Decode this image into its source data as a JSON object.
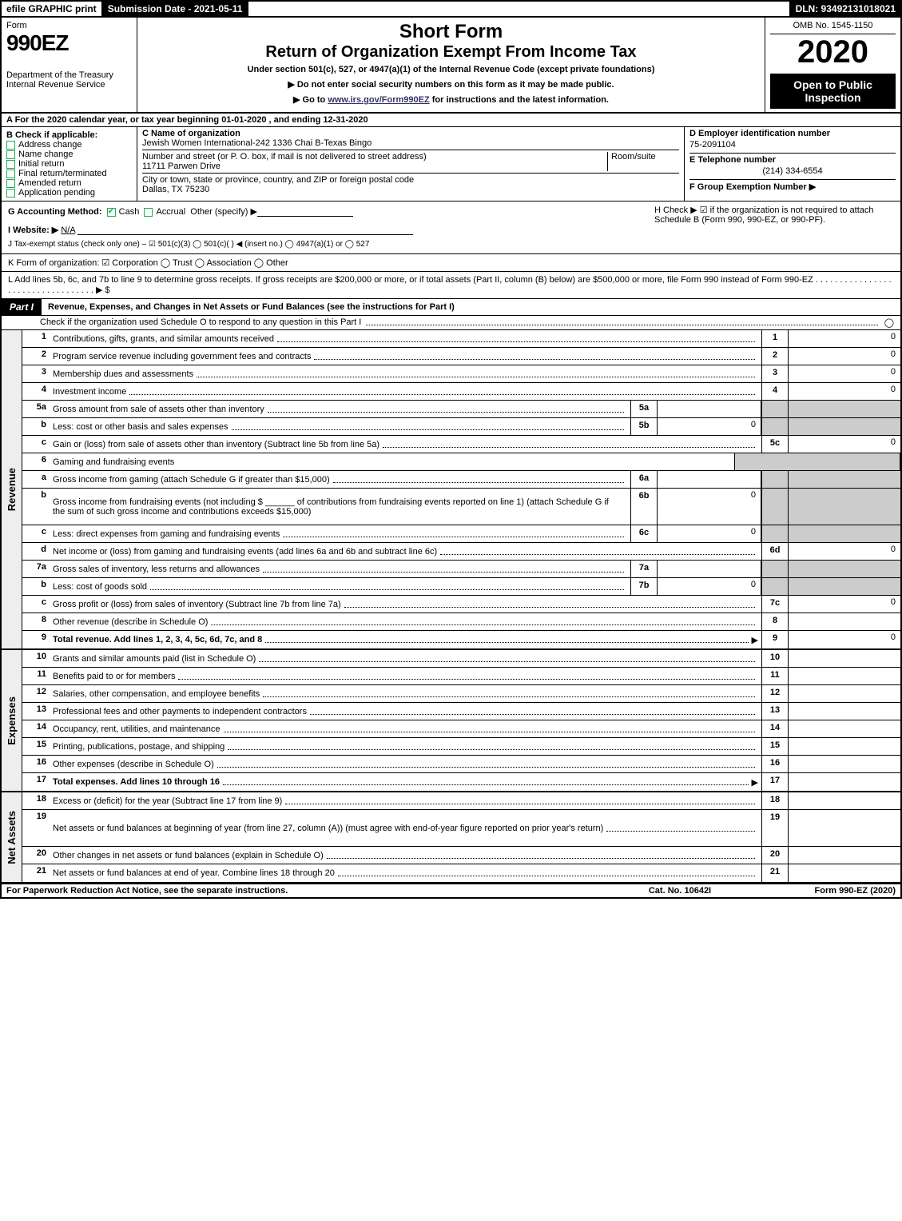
{
  "topbar": {
    "efile": "efile GRAPHIC print",
    "submission": "Submission Date - 2021-05-11",
    "dln": "DLN: 93492131018021"
  },
  "header": {
    "form_word": "Form",
    "form_code": "990EZ",
    "dept1": "Department of the Treasury",
    "dept2": "Internal Revenue Service",
    "title_short": "Short Form",
    "title_long": "Return of Organization Exempt From Income Tax",
    "subtitle": "Under section 501(c), 527, or 4947(a)(1) of the Internal Revenue Code (except private foundations)",
    "instr1": "▶ Do not enter social security numbers on this form as it may be made public.",
    "instr2_pre": "▶ Go to ",
    "instr2_link": "www.irs.gov/Form990EZ",
    "instr2_post": " for instructions and the latest information.",
    "omb": "OMB No. 1545-1150",
    "year": "2020",
    "open": "Open to Public Inspection"
  },
  "periodA": "A  For the 2020 calendar year, or tax year beginning 01-01-2020 , and ending 12-31-2020",
  "boxB": {
    "label": "B  Check if applicable:",
    "items": [
      "Address change",
      "Name change",
      "Initial return",
      "Final return/terminated",
      "Amended return",
      "Application pending"
    ]
  },
  "boxC": {
    "c_label": "C Name of organization",
    "org": "Jewish Women International-242 1336 Chai B-Texas Bingo",
    "addr_label": "Number and street (or P. O. box, if mail is not delivered to street address)",
    "room_label": "Room/suite",
    "addr": "11711 Parwen Drive",
    "city_label": "City or town, state or province, country, and ZIP or foreign postal code",
    "city": "Dallas, TX  75230"
  },
  "boxD": {
    "d_label": "D Employer identification number",
    "ein": "75-2091104",
    "e_label": "E Telephone number",
    "phone": "(214) 334-6554",
    "f_label": "F Group Exemption Number  ▶"
  },
  "lineG": {
    "label": "G Accounting Method:",
    "opts": [
      "Cash",
      "Accrual",
      "Other (specify) ▶"
    ]
  },
  "lineH": "H  Check ▶ ☑ if the organization is not required to attach Schedule B (Form 990, 990-EZ, or 990-PF).",
  "lineI": {
    "label": "I Website: ▶",
    "val": "N/A"
  },
  "lineJ": "J Tax-exempt status (check only one) – ☑ 501(c)(3)  ◯ 501(c)(  ) ◀ (insert no.)  ◯ 4947(a)(1) or  ◯ 527",
  "lineK": "K Form of organization:  ☑ Corporation  ◯ Trust  ◯ Association  ◯ Other",
  "lineL": "L Add lines 5b, 6c, and 7b to line 9 to determine gross receipts. If gross receipts are $200,000 or more, or if total assets (Part II, column (B) below) are $500,000 or more, file Form 990 instead of Form 990-EZ . . . . . . . . . . . . . . . . . . . . . . . . . . . . . . . . . . ▶ $",
  "part1": {
    "tab": "Part I",
    "title": "Revenue, Expenses, and Changes in Net Assets or Fund Balances (see the instructions for Part I)",
    "check_line": "Check if the organization used Schedule O to respond to any question in this Part I",
    "check_val": "◯"
  },
  "sections": {
    "revenue": "Revenue",
    "expenses": "Expenses",
    "netassets": "Net Assets"
  },
  "rows": [
    {
      "ln": "1",
      "desc": "Contributions, gifts, grants, and similar amounts received",
      "num": "1",
      "val": "0"
    },
    {
      "ln": "2",
      "desc": "Program service revenue including government fees and contracts",
      "num": "2",
      "val": "0"
    },
    {
      "ln": "3",
      "desc": "Membership dues and assessments",
      "num": "3",
      "val": "0"
    },
    {
      "ln": "4",
      "desc": "Investment income",
      "num": "4",
      "val": "0"
    },
    {
      "ln": "5a",
      "desc": "Gross amount from sale of assets other than inventory",
      "sub": "5a",
      "subval": "",
      "grey": true
    },
    {
      "ln": "b",
      "desc": "Less: cost or other basis and sales expenses",
      "sub": "5b",
      "subval": "0",
      "grey": true
    },
    {
      "ln": "c",
      "desc": "Gain or (loss) from sale of assets other than inventory (Subtract line 5b from line 5a)",
      "num": "5c",
      "val": "0"
    },
    {
      "ln": "6",
      "desc": "Gaming and fundraising events",
      "plain": true,
      "grey": true
    },
    {
      "ln": "a",
      "desc": "Gross income from gaming (attach Schedule G if greater than $15,000)",
      "sub": "6a",
      "subval": "",
      "grey": true
    },
    {
      "ln": "b",
      "desc": "Gross income from fundraising events (not including $ ______ of contributions from fundraising events reported on line 1) (attach Schedule G if the sum of such gross income and contributions exceeds $15,000)",
      "sub": "6b",
      "subval": "0",
      "grey": true,
      "tall": true
    },
    {
      "ln": "c",
      "desc": "Less: direct expenses from gaming and fundraising events",
      "sub": "6c",
      "subval": "0",
      "grey": true
    },
    {
      "ln": "d",
      "desc": "Net income or (loss) from gaming and fundraising events (add lines 6a and 6b and subtract line 6c)",
      "num": "6d",
      "val": "0"
    },
    {
      "ln": "7a",
      "desc": "Gross sales of inventory, less returns and allowances",
      "sub": "7a",
      "subval": "",
      "grey": true
    },
    {
      "ln": "b",
      "desc": "Less: cost of goods sold",
      "sub": "7b",
      "subval": "0",
      "grey": true
    },
    {
      "ln": "c",
      "desc": "Gross profit or (loss) from sales of inventory (Subtract line 7b from line 7a)",
      "num": "7c",
      "val": "0"
    },
    {
      "ln": "8",
      "desc": "Other revenue (describe in Schedule O)",
      "num": "8",
      "val": ""
    },
    {
      "ln": "9",
      "desc": "Total revenue. Add lines 1, 2, 3, 4, 5c, 6d, 7c, and 8",
      "num": "9",
      "val": "0",
      "bold": true,
      "arrow": true
    }
  ],
  "exp_rows": [
    {
      "ln": "10",
      "desc": "Grants and similar amounts paid (list in Schedule O)",
      "num": "10",
      "val": ""
    },
    {
      "ln": "11",
      "desc": "Benefits paid to or for members",
      "num": "11",
      "val": ""
    },
    {
      "ln": "12",
      "desc": "Salaries, other compensation, and employee benefits",
      "num": "12",
      "val": ""
    },
    {
      "ln": "13",
      "desc": "Professional fees and other payments to independent contractors",
      "num": "13",
      "val": ""
    },
    {
      "ln": "14",
      "desc": "Occupancy, rent, utilities, and maintenance",
      "num": "14",
      "val": ""
    },
    {
      "ln": "15",
      "desc": "Printing, publications, postage, and shipping",
      "num": "15",
      "val": ""
    },
    {
      "ln": "16",
      "desc": "Other expenses (describe in Schedule O)",
      "num": "16",
      "val": ""
    },
    {
      "ln": "17",
      "desc": "Total expenses. Add lines 10 through 16",
      "num": "17",
      "val": "",
      "bold": true,
      "arrow": true
    }
  ],
  "net_rows": [
    {
      "ln": "18",
      "desc": "Excess or (deficit) for the year (Subtract line 17 from line 9)",
      "num": "18",
      "val": ""
    },
    {
      "ln": "19",
      "desc": "Net assets or fund balances at beginning of year (from line 27, column (A)) (must agree with end-of-year figure reported on prior year's return)",
      "num": "19",
      "val": "",
      "tall": true
    },
    {
      "ln": "20",
      "desc": "Other changes in net assets or fund balances (explain in Schedule O)",
      "num": "20",
      "val": ""
    },
    {
      "ln": "21",
      "desc": "Net assets or fund balances at end of year. Combine lines 18 through 20",
      "num": "21",
      "val": ""
    }
  ],
  "footer": {
    "left": "For Paperwork Reduction Act Notice, see the separate instructions.",
    "mid": "Cat. No. 10642I",
    "right": "Form 990-EZ (2020)"
  }
}
